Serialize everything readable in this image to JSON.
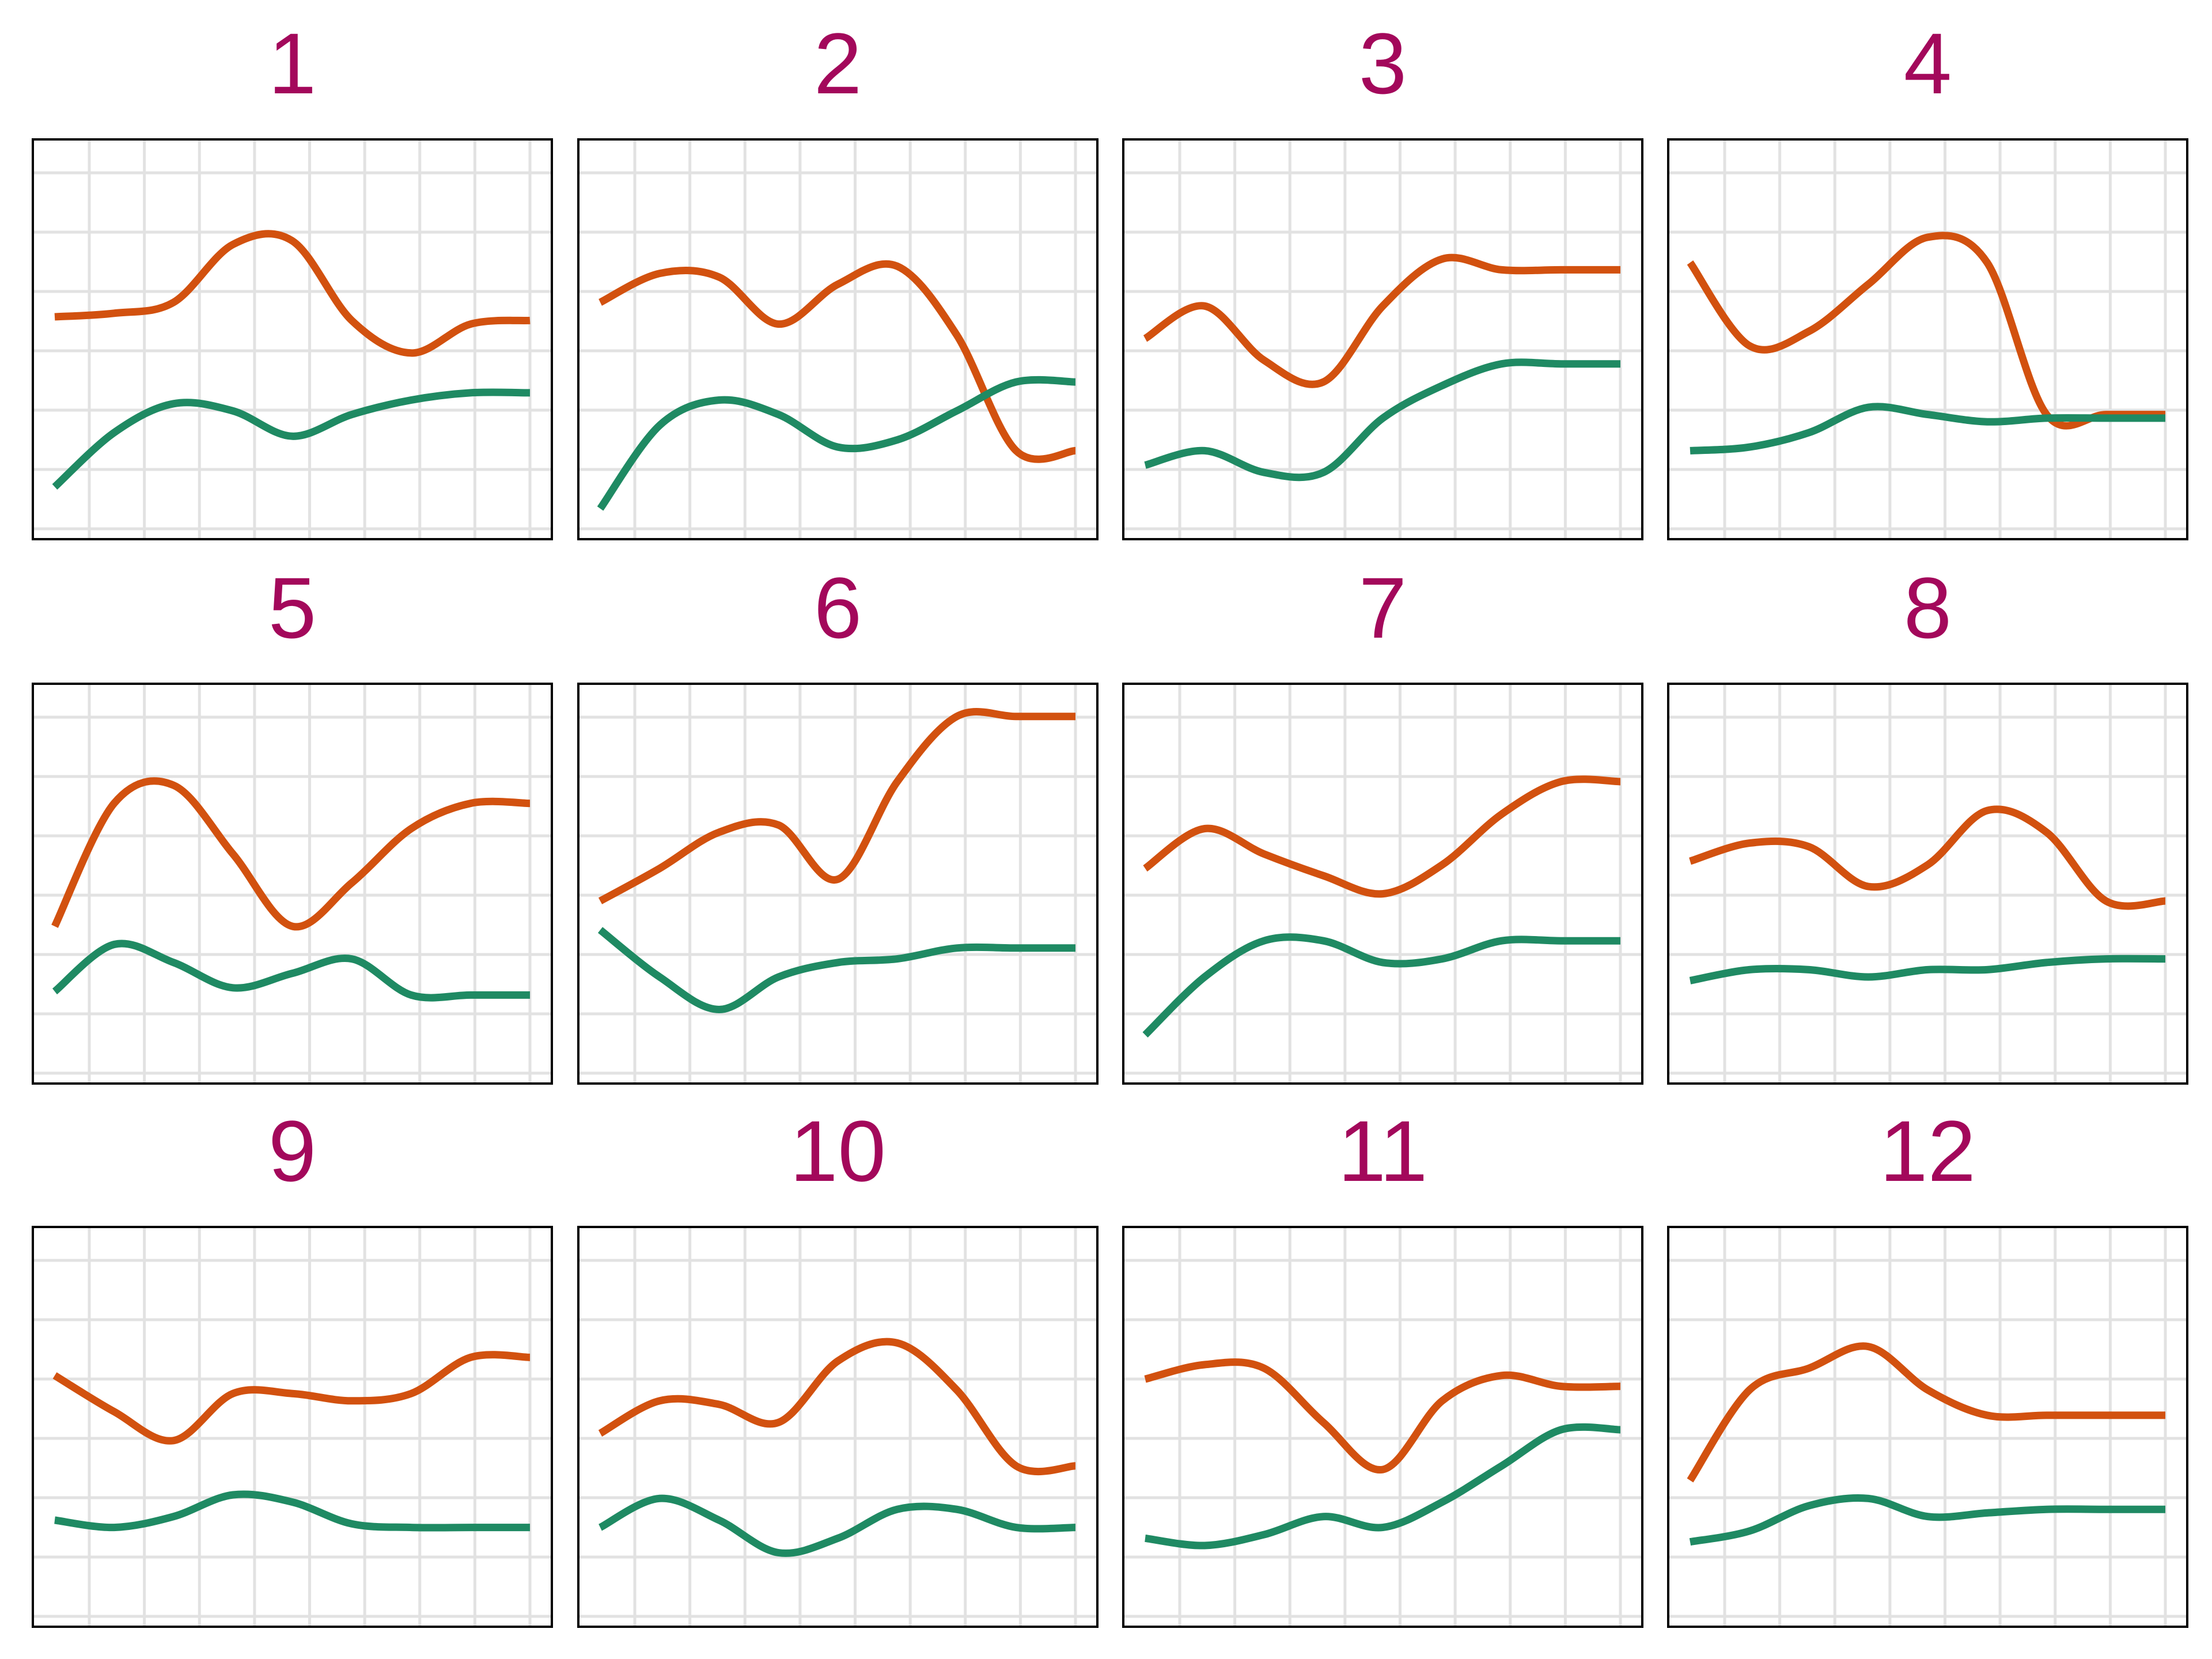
{
  "colors": {
    "title": "#a3085b",
    "series_a": "#d2510f",
    "series_b": "#1f8a63",
    "grid": "#e2e2e2",
    "frame": "#000000"
  },
  "chart_data": [
    {
      "type": "line",
      "title": "1",
      "xlim": [
        0,
        8
      ],
      "ylim": [
        0,
        10
      ],
      "grid": true,
      "x": [
        0,
        1,
        2,
        3,
        4,
        5,
        6,
        7,
        8
      ],
      "series": [
        {
          "values": [
            5.7,
            5.8,
            6.1,
            7.7,
            7.8,
            5.6,
            4.7,
            5.5,
            5.6
          ]
        },
        {
          "values": [
            1.0,
            2.5,
            3.3,
            3.1,
            2.4,
            3.0,
            3.4,
            3.6,
            3.6
          ]
        }
      ]
    },
    {
      "type": "line",
      "title": "2",
      "xlim": [
        0,
        8
      ],
      "ylim": [
        0,
        10
      ],
      "grid": true,
      "x": [
        0,
        1,
        2,
        3,
        4,
        5,
        6,
        7,
        8
      ],
      "series": [
        {
          "values": [
            6.1,
            6.9,
            6.8,
            5.5,
            6.6,
            7.1,
            5.2,
            2.0,
            2.0
          ]
        },
        {
          "values": [
            0.4,
            2.7,
            3.4,
            3.0,
            2.1,
            2.3,
            3.1,
            3.9,
            3.9
          ]
        }
      ]
    },
    {
      "type": "line",
      "title": "3",
      "xlim": [
        0,
        8
      ],
      "ylim": [
        0,
        10
      ],
      "grid": true,
      "x": [
        0,
        1,
        2,
        3,
        4,
        5,
        6,
        7,
        8
      ],
      "series": [
        {
          "values": [
            5.1,
            6.0,
            4.5,
            3.9,
            6.0,
            7.3,
            7.0,
            7.0,
            7.0
          ]
        },
        {
          "values": [
            1.6,
            2.0,
            1.4,
            1.4,
            2.9,
            3.8,
            4.4,
            4.4,
            4.4
          ]
        }
      ]
    },
    {
      "type": "line",
      "title": "4",
      "xlim": [
        0,
        8
      ],
      "ylim": [
        0,
        10
      ],
      "grid": true,
      "x": [
        0,
        1,
        2,
        3,
        4,
        5,
        6,
        7,
        8
      ],
      "series": [
        {
          "values": [
            7.2,
            4.9,
            5.3,
            6.6,
            7.9,
            7.2,
            3.0,
            3.0,
            3.0
          ]
        },
        {
          "values": [
            2.0,
            2.1,
            2.5,
            3.2,
            3.0,
            2.8,
            2.9,
            2.9,
            2.9
          ]
        }
      ]
    },
    {
      "type": "line",
      "title": "5",
      "xlim": [
        0,
        8
      ],
      "ylim": [
        0,
        10
      ],
      "grid": true,
      "x": [
        0,
        1,
        2,
        3,
        4,
        5,
        6,
        7,
        8
      ],
      "series": [
        {
          "values": [
            3.9,
            7.3,
            7.8,
            5.9,
            3.9,
            5.1,
            6.6,
            7.3,
            7.3
          ]
        },
        {
          "values": [
            2.1,
            3.4,
            2.9,
            2.2,
            2.6,
            3.0,
            2.0,
            2.0,
            2.0
          ]
        }
      ]
    },
    {
      "type": "line",
      "title": "6",
      "xlim": [
        0,
        8
      ],
      "ylim": [
        0,
        10
      ],
      "grid": true,
      "x": [
        0,
        1,
        2,
        3,
        4,
        5,
        6,
        7,
        8
      ],
      "series": [
        {
          "values": [
            4.6,
            5.5,
            6.5,
            6.7,
            5.2,
            7.9,
            9.7,
            9.7,
            9.7
          ]
        },
        {
          "values": [
            3.8,
            2.5,
            1.6,
            2.5,
            2.9,
            3.0,
            3.3,
            3.3,
            3.3
          ]
        }
      ]
    },
    {
      "type": "line",
      "title": "7",
      "xlim": [
        0,
        8
      ],
      "ylim": [
        0,
        10
      ],
      "grid": true,
      "x": [
        0,
        1,
        2,
        3,
        4,
        5,
        6,
        7,
        8
      ],
      "series": [
        {
          "values": [
            5.5,
            6.6,
            5.9,
            5.3,
            4.8,
            5.6,
            7.0,
            7.9,
            7.9
          ]
        },
        {
          "values": [
            0.9,
            2.5,
            3.5,
            3.5,
            2.9,
            3.0,
            3.5,
            3.5,
            3.5
          ]
        }
      ]
    },
    {
      "type": "line",
      "title": "8",
      "xlim": [
        0,
        8
      ],
      "ylim": [
        0,
        10
      ],
      "grid": true,
      "x": [
        0,
        1,
        2,
        3,
        4,
        5,
        6,
        7,
        8
      ],
      "series": [
        {
          "values": [
            5.7,
            6.2,
            6.1,
            5.0,
            5.6,
            7.1,
            6.5,
            4.6,
            4.6
          ]
        },
        {
          "values": [
            2.4,
            2.7,
            2.7,
            2.5,
            2.7,
            2.7,
            2.9,
            3.0,
            3.0
          ]
        }
      ]
    },
    {
      "type": "line",
      "title": "9",
      "xlim": [
        0,
        8
      ],
      "ylim": [
        0,
        10
      ],
      "grid": true,
      "x": [
        0,
        1,
        2,
        3,
        4,
        5,
        6,
        7,
        8
      ],
      "series": [
        {
          "values": [
            6.5,
            5.5,
            4.7,
            6.0,
            6.0,
            5.8,
            6.0,
            7.0,
            7.0
          ]
        },
        {
          "values": [
            2.5,
            2.3,
            2.6,
            3.2,
            3.0,
            2.4,
            2.3,
            2.3,
            2.3
          ]
        }
      ]
    },
    {
      "type": "line",
      "title": "10",
      "xlim": [
        0,
        8
      ],
      "ylim": [
        0,
        10
      ],
      "grid": true,
      "x": [
        0,
        1,
        2,
        3,
        4,
        5,
        6,
        7,
        8
      ],
      "series": [
        {
          "values": [
            4.9,
            5.8,
            5.7,
            5.2,
            6.9,
            7.4,
            6.1,
            4.0,
            4.0
          ]
        },
        {
          "values": [
            2.3,
            3.1,
            2.5,
            1.6,
            2.0,
            2.8,
            2.8,
            2.3,
            2.3
          ]
        }
      ]
    },
    {
      "type": "line",
      "title": "11",
      "xlim": [
        0,
        8
      ],
      "ylim": [
        0,
        10
      ],
      "grid": true,
      "x": [
        0,
        1,
        2,
        3,
        4,
        5,
        6,
        7,
        8
      ],
      "series": [
        {
          "values": [
            6.4,
            6.8,
            6.7,
            5.2,
            3.9,
            5.8,
            6.5,
            6.2,
            6.2
          ]
        },
        {
          "values": [
            2.0,
            1.8,
            2.1,
            2.6,
            2.3,
            3.0,
            4.0,
            5.0,
            5.0
          ]
        }
      ]
    },
    {
      "type": "line",
      "title": "12",
      "xlim": [
        0,
        8
      ],
      "ylim": [
        0,
        10
      ],
      "grid": true,
      "x": [
        0,
        1,
        2,
        3,
        4,
        5,
        6,
        7,
        8
      ],
      "series": [
        {
          "values": [
            3.6,
            6.1,
            6.7,
            7.3,
            6.1,
            5.4,
            5.4,
            5.4,
            5.4
          ]
        },
        {
          "values": [
            1.9,
            2.2,
            2.9,
            3.1,
            2.6,
            2.7,
            2.8,
            2.8,
            2.8
          ]
        }
      ]
    }
  ]
}
